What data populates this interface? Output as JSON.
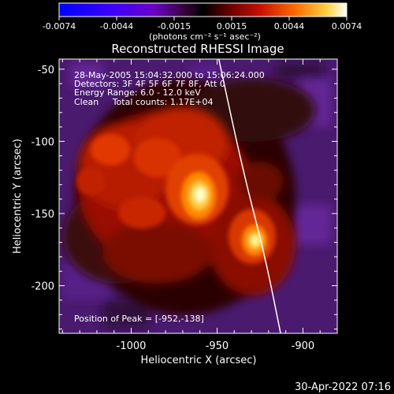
{
  "colorbar": {
    "ticks": [
      "-0.0074",
      "-0.0044",
      "-0.0015",
      "0.0015",
      "0.0044",
      "0.0074"
    ],
    "unit_label": "(photons cm⁻² s⁻¹ asec⁻²)"
  },
  "title": "Reconstructed RHESSI Image",
  "info_lines": [
    "28-May-2005 15:04:32.000 to 15:06:24.000",
    "Detectors: 3F 4F 5F 6F 7F 8F, Att 0",
    "Energy Range: 6.0 - 12.0 keV",
    "Clean     Total counts: 1.17E+04"
  ],
  "peak_label": "Position of Peak = [-952,-138]",
  "footer_timestamp": "30-Apr-2022 07:16",
  "chart_data": {
    "type": "heatmap",
    "title": "Reconstructed RHESSI Image",
    "xlabel": "Heliocentric X (arcsec)",
    "ylabel": "Heliocentric Y (arcsec)",
    "xlim": [
      -1042,
      -880
    ],
    "ylim": [
      -233,
      -43
    ],
    "x_ticks": [
      -1000,
      -950,
      -900
    ],
    "x_tick_labels": [
      "-1000",
      "-950",
      "-900"
    ],
    "y_ticks": [
      -50,
      -100,
      -150,
      -200
    ],
    "y_tick_labels": [
      "-50",
      "-100",
      "-150",
      "-200"
    ],
    "color_range": [
      -0.0074,
      0.0074
    ],
    "colormap": "blue-purple-red-orange-yellow-white",
    "peaks": [
      {
        "x": -952,
        "y": -138,
        "relative_intensity": 1.0
      },
      {
        "x": -906,
        "y": -168,
        "relative_intensity": 0.75
      }
    ],
    "limb_points": [
      [
        -949,
        -43
      ],
      [
        -935,
        -120
      ],
      [
        -922,
        -180
      ],
      [
        -913,
        -233
      ]
    ],
    "colors": {
      "limb": "#ffffff",
      "background": "#000000"
    }
  }
}
